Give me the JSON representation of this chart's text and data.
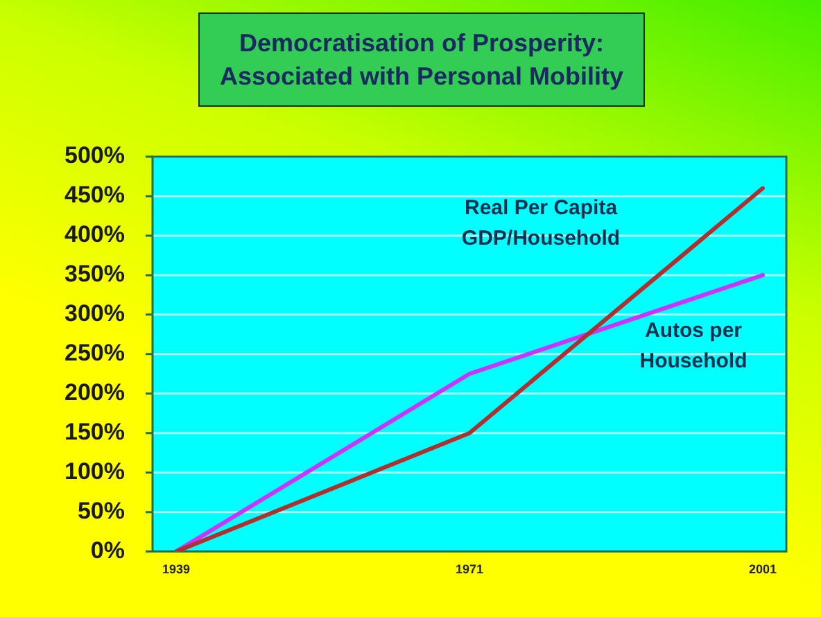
{
  "chart_data": {
    "type": "line",
    "title": "Democratisation of Prosperity:\nAssociated with Personal Mobility",
    "categories": [
      "1939",
      "1971",
      "2001"
    ],
    "series": [
      {
        "name": "Real Per Capita GDP/Household",
        "color": "#b03030",
        "values": [
          0,
          150,
          460
        ]
      },
      {
        "name": "Autos per Household",
        "color": "#cc33ff",
        "values": [
          0,
          225,
          350
        ]
      }
    ],
    "ylim": [
      0,
      500
    ],
    "yticks": [
      {
        "value": 0,
        "label": "0%"
      },
      {
        "value": 50,
        "label": "50%"
      },
      {
        "value": 100,
        "label": "100%"
      },
      {
        "value": 150,
        "label": "150%"
      },
      {
        "value": 200,
        "label": "200%"
      },
      {
        "value": 250,
        "label": "250%"
      },
      {
        "value": 300,
        "label": "300%"
      },
      {
        "value": 350,
        "label": "350%"
      },
      {
        "value": 400,
        "label": "400%"
      },
      {
        "value": 450,
        "label": "450%"
      },
      {
        "value": 500,
        "label": "500%"
      }
    ],
    "grid": "y",
    "legend": false,
    "marker": "none",
    "line_style": "solid"
  }
}
